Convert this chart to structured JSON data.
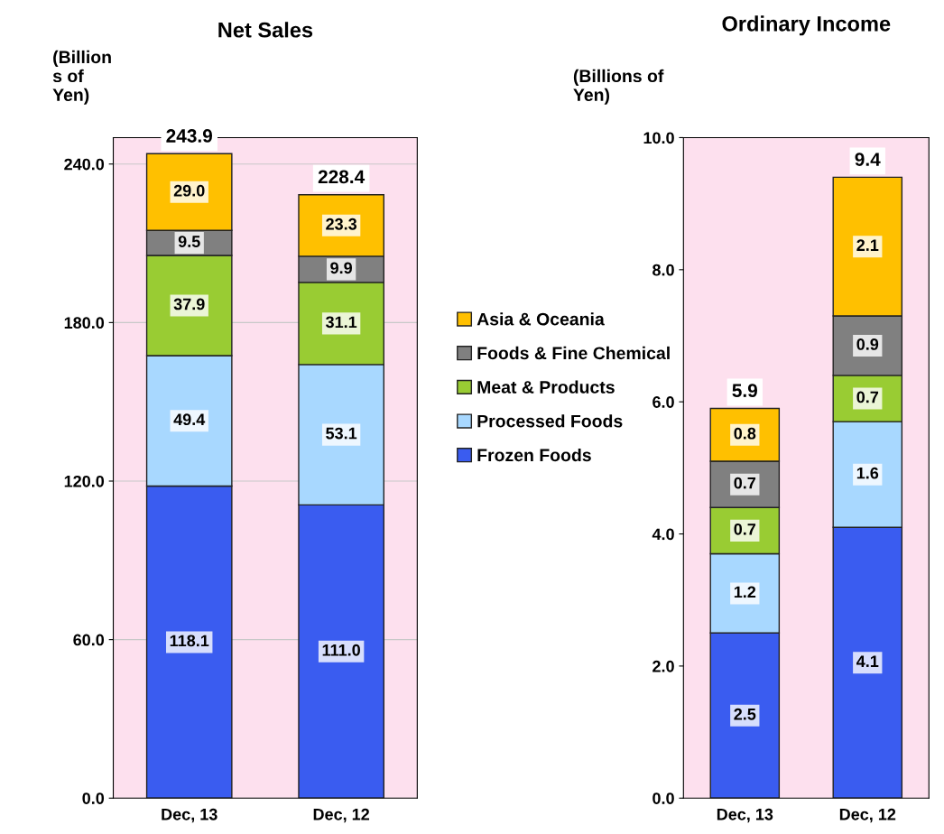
{
  "chart_data": [
    {
      "type": "bar",
      "stacked": true,
      "title": "Net Sales",
      "ylabel": "(Billion\ns of\nYen)",
      "categories": [
        "Dec, 13",
        "Dec, 12"
      ],
      "series": [
        {
          "name": "Frozen Foods",
          "color": "#3a5cf0",
          "values": [
            118.1,
            111.0
          ],
          "value_labels": [
            "118.1",
            "111.0"
          ]
        },
        {
          "name": "Processed Foods",
          "color": "#a8d8ff",
          "values": [
            49.4,
            53.1
          ],
          "value_labels": [
            "49.4",
            "53.1"
          ]
        },
        {
          "name": "Meat & Products",
          "color": "#99cc33",
          "values": [
            37.9,
            31.1
          ],
          "value_labels": [
            "37.9",
            "31.1"
          ]
        },
        {
          "name": "Foods & Fine Chemical",
          "color": "#808080",
          "values": [
            9.5,
            9.9
          ],
          "value_labels": [
            "9.5",
            "9.9"
          ]
        },
        {
          "name": "Asia & Oceania",
          "color": "#ffc000",
          "values": [
            29.0,
            23.3
          ],
          "value_labels": [
            "29.0",
            "23.3"
          ]
        }
      ],
      "totals": [
        "243.9",
        "228.4"
      ],
      "ylim": [
        0,
        250
      ],
      "yticks": [
        {
          "value": 0,
          "label": "0.0"
        },
        {
          "value": 60,
          "label": "60.0"
        },
        {
          "value": 120,
          "label": "120.0"
        },
        {
          "value": 180,
          "label": "180.0"
        },
        {
          "value": 240,
          "label": "240.0"
        }
      ],
      "grid": "y",
      "legend": "right"
    },
    {
      "type": "bar",
      "stacked": true,
      "title": "Ordinary Income",
      "ylabel": "(Billions of\nYen)",
      "categories": [
        "Dec, 13",
        "Dec, 12"
      ],
      "series": [
        {
          "color": "#3a5cf0",
          "values": [
            2.5,
            4.1
          ],
          "value_labels": [
            "2.5",
            "4.1"
          ]
        },
        {
          "color": "#a8d8ff",
          "values": [
            1.2,
            1.6
          ],
          "value_labels": [
            "1.2",
            "1.6"
          ]
        },
        {
          "color": "#99cc33",
          "values": [
            0.7,
            0.7
          ],
          "value_labels": [
            "0.7",
            "0.7"
          ]
        },
        {
          "color": "#808080",
          "values": [
            0.7,
            0.9
          ],
          "value_labels": [
            "0.7",
            "0.9"
          ]
        },
        {
          "color": "#ffc000",
          "values": [
            0.8,
            2.1
          ],
          "value_labels": [
            "0.8",
            "2.1"
          ]
        }
      ],
      "totals": [
        "5.9",
        "9.4"
      ],
      "ylim": [
        0,
        10
      ],
      "yticks": [
        {
          "value": 0,
          "label": "0.0"
        },
        {
          "value": 2,
          "label": "2.0"
        },
        {
          "value": 4,
          "label": "4.0"
        },
        {
          "value": 6,
          "label": "6.0"
        },
        {
          "value": 8,
          "label": "8.0"
        },
        {
          "value": 10,
          "label": "10.0"
        }
      ]
    }
  ]
}
